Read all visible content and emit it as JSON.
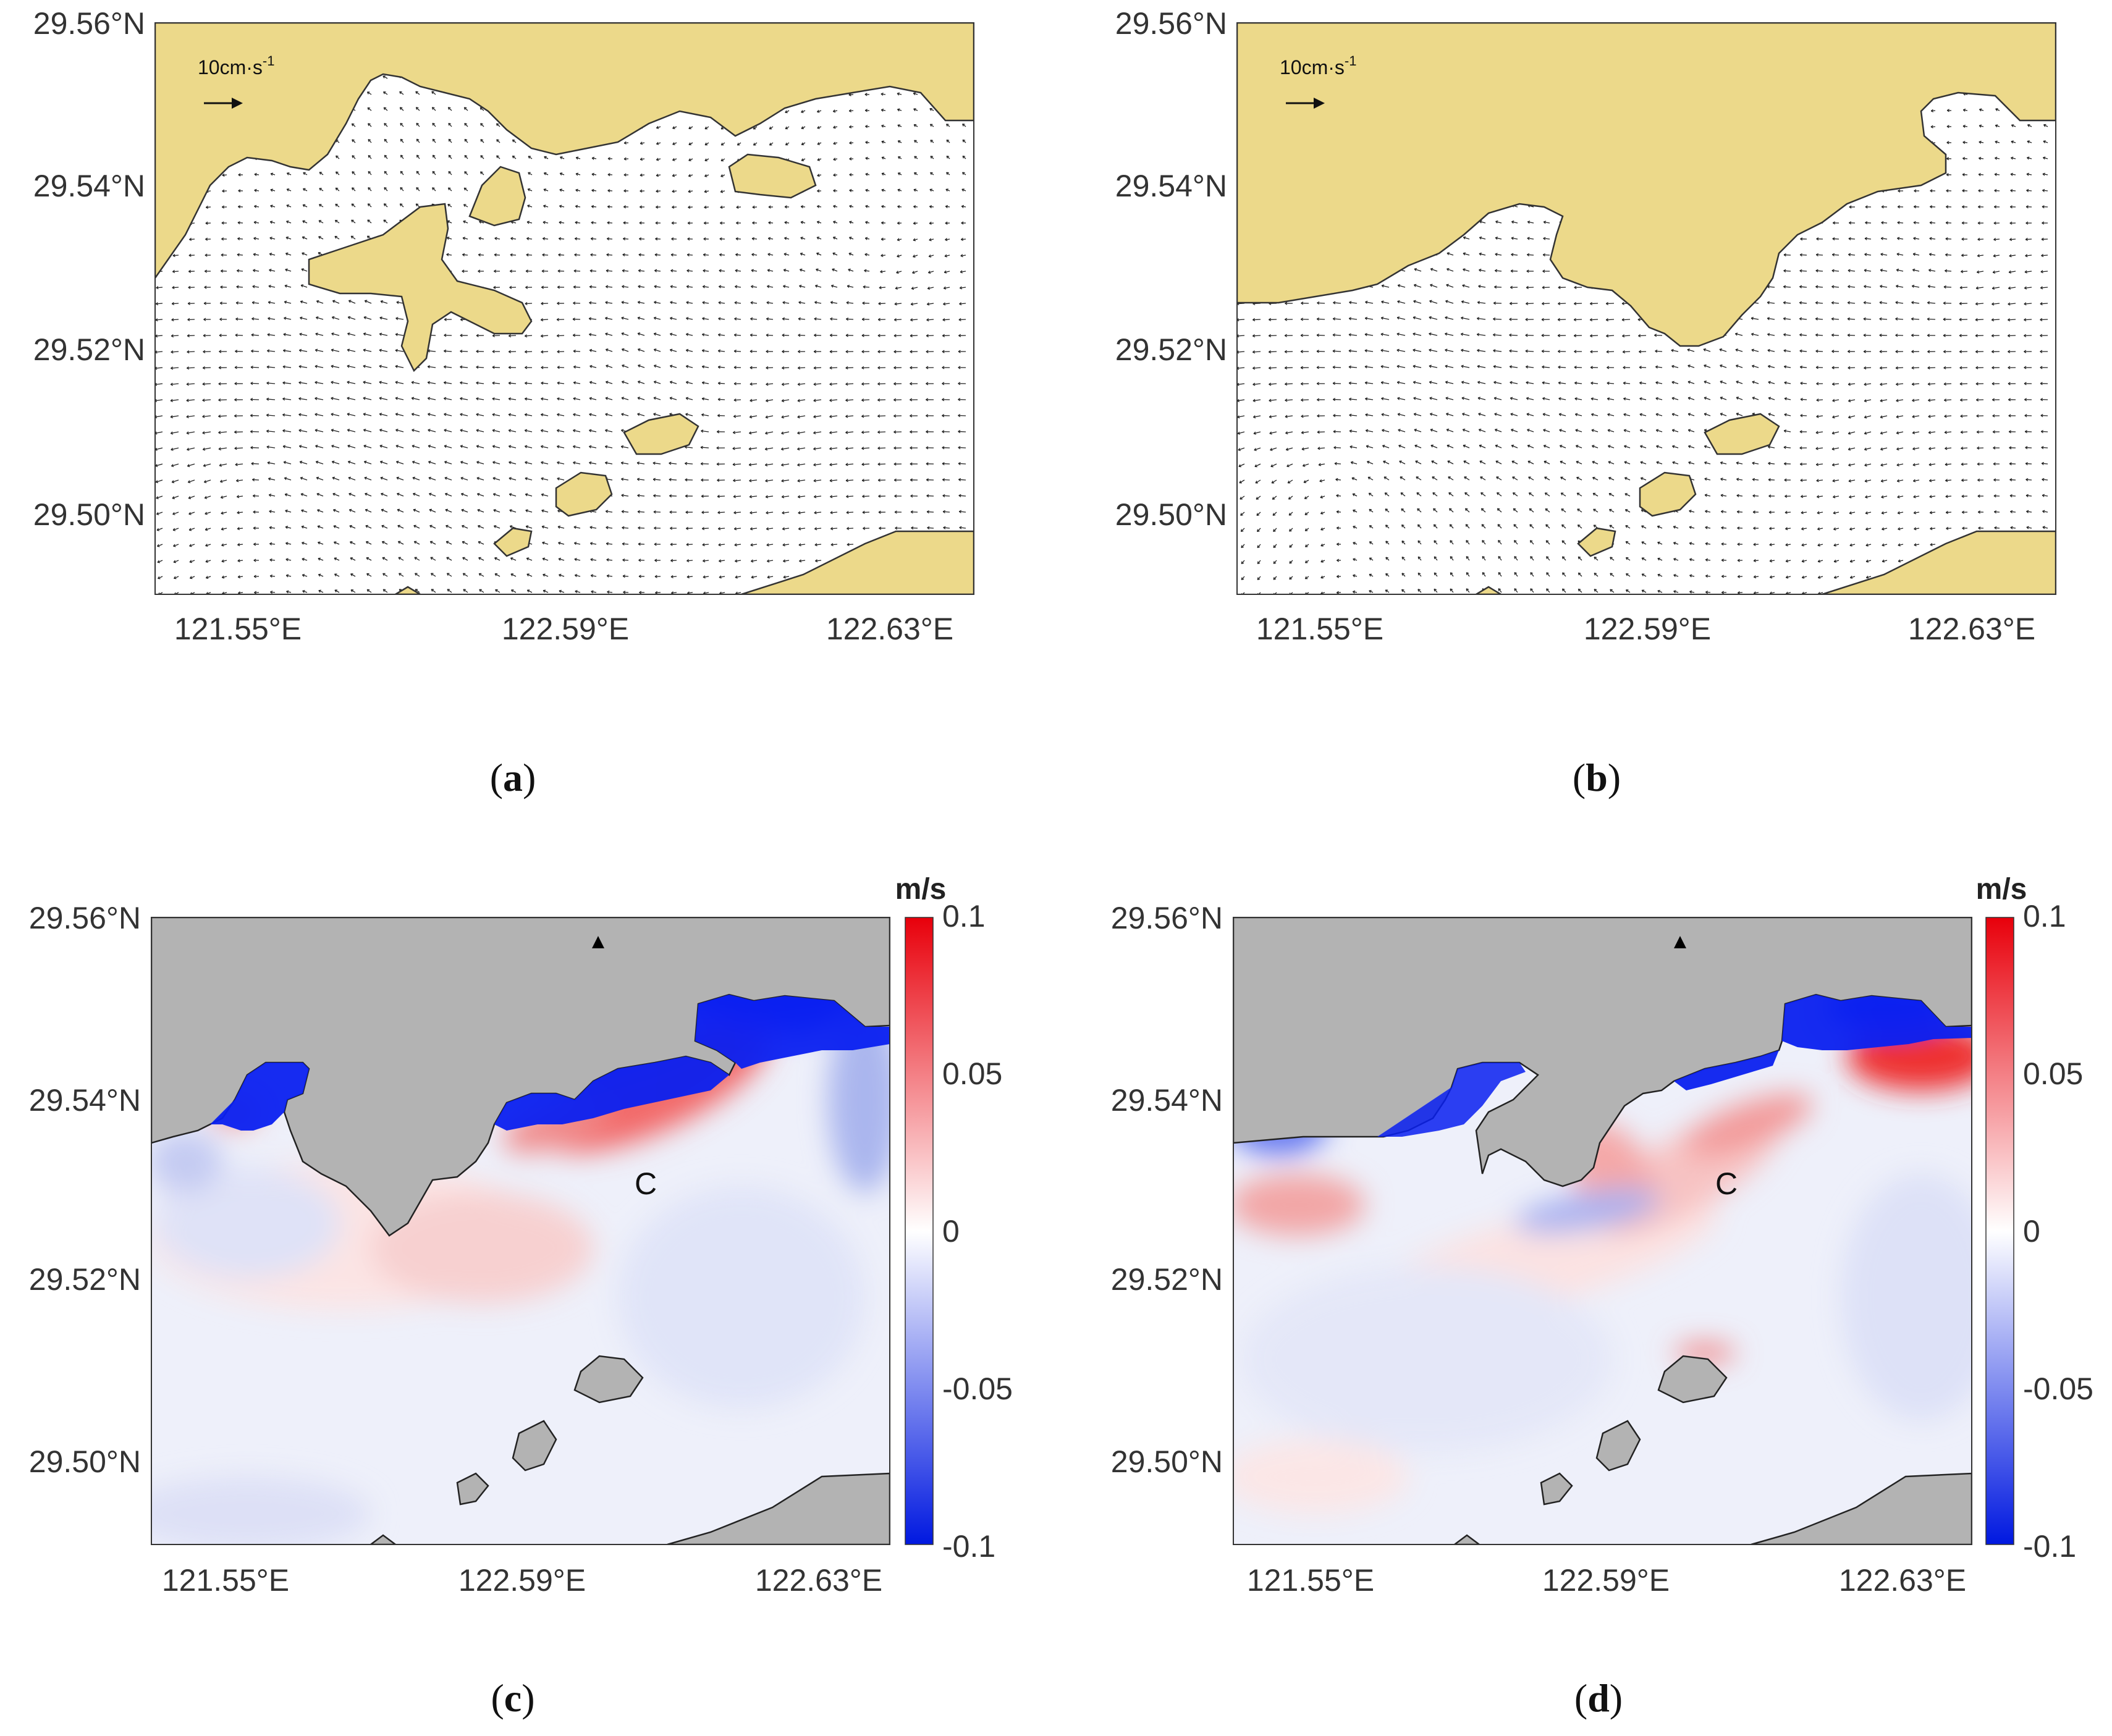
{
  "colors": {
    "land_vector": "#ecd98a",
    "land_diff": "#b3b3b3",
    "positive": "#e8000b",
    "negative": "#0018e0",
    "zero": "#ffffff"
  },
  "panels": [
    {
      "id": "a",
      "type": "vector",
      "caption_letter": "a",
      "scale_label": "10cm·s",
      "scale_exp": "-1",
      "yticks": [
        "29.56°N",
        "29.54°N",
        "29.52°N",
        "29.50°N"
      ],
      "xticks": [
        "121.55°E",
        "122.59°E",
        "122.63°E"
      ]
    },
    {
      "id": "b",
      "type": "vector",
      "caption_letter": "b",
      "scale_label": "10cm·s",
      "scale_exp": "-1",
      "yticks": [
        "29.56°N",
        "29.54°N",
        "29.52°N",
        "29.50°N"
      ],
      "xticks": [
        "121.55°E",
        "122.59°E",
        "122.63°E"
      ]
    },
    {
      "id": "c",
      "type": "difference",
      "caption_letter": "c",
      "point_label": "C",
      "yticks": [
        "29.56°N",
        "29.54°N",
        "29.52°N",
        "29.50°N"
      ],
      "xticks": [
        "121.55°E",
        "122.59°E",
        "122.63°E"
      ],
      "colorbar": {
        "unit": "m/s",
        "ticks": [
          "0.1",
          "0.05",
          "0",
          "-0.05",
          "-0.1"
        ]
      }
    },
    {
      "id": "d",
      "type": "difference",
      "caption_letter": "d",
      "point_label": "C",
      "yticks": [
        "29.56°N",
        "29.54°N",
        "29.52°N",
        "29.50°N"
      ],
      "xticks": [
        "121.55°E",
        "122.59°E",
        "122.63°E"
      ],
      "colorbar": {
        "unit": "m/s",
        "ticks": [
          "0.1",
          "0.05",
          "0",
          "-0.05",
          "-0.1"
        ]
      }
    }
  ]
}
